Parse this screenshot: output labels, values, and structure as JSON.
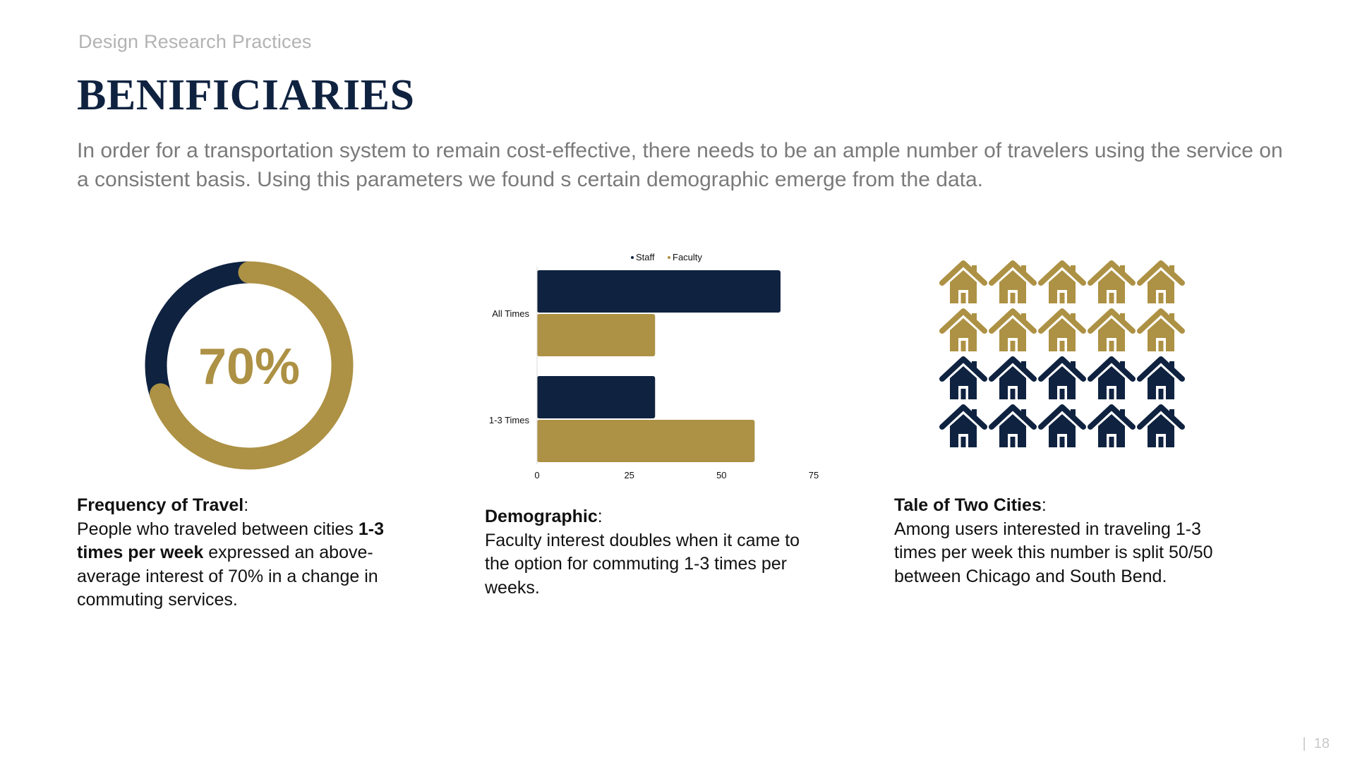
{
  "header": {
    "kicker": "Design Research Practices",
    "title": "BENIFICIARIES",
    "intro": "In order for a transportation system to remain cost-effective, there needs to be an ample number of travelers using the service on a consistent basis.  Using this parameters we found s certain demographic emerge from the data."
  },
  "colors": {
    "navy": "#0f2240",
    "gold": "#ad9144",
    "text": "#111111",
    "muted": "#7a7a7a"
  },
  "chart_data": [
    {
      "type": "pie",
      "variant": "donut",
      "center_label": "70%",
      "values": [
        70,
        30
      ],
      "slice_colors": [
        "#ad9144",
        "#0f2240"
      ]
    },
    {
      "type": "bar",
      "orientation": "horizontal",
      "categories": [
        "All Times",
        "1-3 Times"
      ],
      "series": [
        {
          "name": "Staff",
          "values": [
            66,
            32
          ],
          "color": "#0f2240"
        },
        {
          "name": "Faculty",
          "values": [
            32,
            59
          ],
          "color": "#ad9144"
        }
      ],
      "xlim": [
        0,
        75
      ],
      "xticks": [
        0,
        25,
        50,
        75
      ],
      "legend": "top"
    },
    {
      "type": "pictograph",
      "icon": "house-icon",
      "rows": 4,
      "cols": 5,
      "total": 20,
      "gold_count": 10,
      "navy_count": 10
    }
  ],
  "captions": [
    {
      "heading": "Frequency of Travel",
      "p1": "People who traveled between cities ",
      "b1": "1-3 times per week",
      "p2": " expressed an above-average interest of 70% in a change in commuting services."
    },
    {
      "heading": "Demographic",
      "p1": "Faculty interest doubles when it came to the option for commuting 1-3 times per weeks."
    },
    {
      "heading": "Tale of Two Cities",
      "p1": "Among users interested in traveling 1-3 times per week this number is split 50/50 between Chicago and South Bend."
    }
  ],
  "footer": {
    "page_number": "18"
  }
}
